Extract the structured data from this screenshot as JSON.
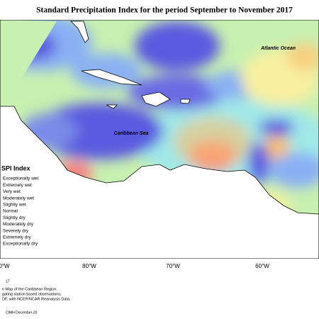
{
  "title": "Standard Precipitation Index for the period September to November 2017",
  "map_labels": {
    "ocean": "Atlantic Ocean",
    "sea": "Caribbean Sea"
  },
  "legend": {
    "title": "SPI Index",
    "items": [
      "Exceptionally wet",
      "Extremely wet",
      "Very wet",
      "Moderately wet",
      "Slightly wet",
      "Normal",
      "Slightly dry",
      "Moderately dry",
      "Severely dry",
      "Extremely dry",
      "Exceptionally dry"
    ]
  },
  "longitude_labels": [
    "0°W",
    "80°W",
    "70°W",
    "60°W"
  ],
  "footer": {
    "number": "17",
    "lines": [
      "n Map of the Caribbean Region.",
      "gating station based observations,",
      "DF, with NCEP/NCAR Reanalysis Data."
    ],
    "credit": "CIMH December-20"
  }
}
